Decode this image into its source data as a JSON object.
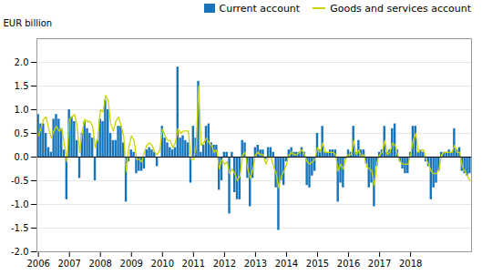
{
  "chart_data": {
    "type": "bar",
    "ylabel": "EUR billion",
    "categories": [
      "2006",
      null,
      null,
      null,
      null,
      null,
      null,
      null,
      null,
      null,
      null,
      null,
      "2007",
      null,
      null,
      null,
      null,
      null,
      null,
      null,
      null,
      null,
      null,
      null,
      "2008",
      null,
      null,
      null,
      null,
      null,
      null,
      null,
      null,
      null,
      null,
      null,
      "2009",
      null,
      null,
      null,
      null,
      null,
      null,
      null,
      null,
      null,
      null,
      null,
      "2010",
      null,
      null,
      null,
      null,
      null,
      null,
      null,
      null,
      null,
      null,
      null,
      "2011",
      null,
      null,
      null,
      null,
      null,
      null,
      null,
      null,
      null,
      null,
      null,
      "2012",
      null,
      null,
      null,
      null,
      null,
      null,
      null,
      null,
      null,
      null,
      null,
      "2013",
      null,
      null,
      null,
      null,
      null,
      null,
      null,
      null,
      null,
      null,
      null,
      "2014",
      null,
      null,
      null,
      null,
      null,
      null,
      null,
      null,
      null,
      null,
      null,
      "2015",
      null,
      null,
      null,
      null,
      null,
      null,
      null,
      null,
      null,
      null,
      null,
      "2016",
      null,
      null,
      null,
      null,
      null,
      null,
      null,
      null,
      null,
      null,
      null,
      "2017",
      null,
      null,
      null,
      null,
      null,
      null,
      null,
      null,
      null,
      null,
      null,
      "2018",
      null,
      null,
      null,
      null,
      null,
      null,
      null,
      null,
      null,
      null,
      null,
      null,
      null,
      null,
      null,
      null,
      null,
      null,
      null,
      null,
      null,
      null,
      null
    ],
    "series": [
      {
        "name": "Current account",
        "type": "bar",
        "color": "#1874b8",
        "values": [
          0.9,
          0.7,
          0.7,
          0.5,
          0.2,
          0.1,
          0.8,
          0.9,
          0.8,
          0.6,
          0.15,
          -0.9,
          1.0,
          0.85,
          0.75,
          0.35,
          -0.45,
          0.5,
          0.75,
          0.6,
          0.5,
          0.4,
          -0.5,
          0.35,
          0.8,
          0.75,
          1.2,
          1.0,
          0.5,
          0.35,
          0.35,
          0.65,
          0.65,
          0.3,
          -0.95,
          -0.1,
          0.15,
          0.1,
          -0.35,
          -0.3,
          -0.3,
          -0.25,
          0.15,
          0.2,
          0.15,
          0.1,
          -0.2,
          0.0,
          0.65,
          0.4,
          0.3,
          0.2,
          0.15,
          0.2,
          1.9,
          0.4,
          0.45,
          0.35,
          0.3,
          -0.55,
          0.65,
          0.4,
          1.6,
          0.1,
          0.25,
          0.65,
          0.7,
          0.3,
          0.25,
          0.25,
          -0.7,
          -0.5,
          0.1,
          0.1,
          -1.2,
          0.1,
          -0.75,
          -0.9,
          -0.9,
          0.35,
          0.3,
          -0.45,
          -1.05,
          -0.45,
          0.2,
          0.25,
          0.15,
          0.15,
          -0.05,
          0.2,
          0.2,
          0.1,
          -0.65,
          -1.55,
          -0.5,
          -0.6,
          -0.1,
          0.15,
          0.2,
          0.1,
          0.1,
          0.1,
          0.2,
          0.1,
          -0.6,
          -0.65,
          -0.4,
          -0.3,
          0.5,
          0.15,
          0.65,
          0.1,
          0.1,
          0.15,
          0.15,
          0.15,
          -0.95,
          -0.55,
          -0.65,
          -0.05,
          0.15,
          0.1,
          0.65,
          0.1,
          0.35,
          0.15,
          0.15,
          -0.15,
          -0.65,
          -0.55,
          -1.05,
          -0.2,
          0.1,
          0.15,
          0.65,
          0.1,
          0.15,
          0.6,
          0.7,
          0.15,
          -0.1,
          -0.25,
          -0.35,
          -0.35,
          0.1,
          0.65,
          0.65,
          0.1,
          0.15,
          0.1,
          -0.1,
          -0.2,
          -0.9,
          -0.65,
          -0.55,
          -0.3,
          0.1,
          0.1,
          0.1,
          0.15,
          0.1,
          0.6,
          0.15,
          0.2,
          -0.3,
          -0.35,
          -0.4,
          -0.35
        ]
      },
      {
        "name": "Goods and services account",
        "type": "line",
        "color": "#c8d400",
        "values": [
          0.45,
          0.6,
          0.8,
          0.85,
          0.6,
          0.4,
          0.55,
          0.65,
          0.55,
          0.6,
          0.3,
          -0.1,
          0.8,
          0.85,
          0.9,
          0.65,
          0.1,
          0.55,
          0.8,
          0.75,
          0.75,
          0.65,
          0.2,
          0.4,
          1.0,
          0.95,
          1.3,
          1.2,
          0.7,
          0.55,
          0.75,
          0.85,
          0.65,
          0.45,
          -0.3,
          0.2,
          0.45,
          0.35,
          -0.05,
          -0.05,
          -0.1,
          0.1,
          0.25,
          0.3,
          0.25,
          0.1,
          0.05,
          0.15,
          0.6,
          0.45,
          0.35,
          0.35,
          0.2,
          0.3,
          0.6,
          0.5,
          0.55,
          0.55,
          0.55,
          -0.05,
          -0.05,
          0.2,
          1.5,
          0.25,
          0.3,
          0.4,
          0.3,
          0.25,
          0.1,
          0.15,
          -0.25,
          -0.05,
          -0.15,
          -0.1,
          -0.35,
          -0.25,
          -0.35,
          -0.5,
          -0.4,
          0.05,
          0.1,
          -0.25,
          -0.45,
          -0.25,
          0.05,
          0.1,
          0.05,
          0.05,
          -0.15,
          0.0,
          0.0,
          -0.2,
          -0.35,
          -0.65,
          -0.4,
          -0.3,
          -0.15,
          0.05,
          0.1,
          0.05,
          0.05,
          0.1,
          0.15,
          0.05,
          -0.1,
          -0.15,
          -0.1,
          -0.05,
          0.2,
          0.1,
          0.3,
          0.1,
          0.1,
          0.1,
          0.1,
          0.05,
          -0.3,
          -0.15,
          -0.25,
          0.0,
          0.05,
          0.05,
          0.35,
          0.05,
          0.15,
          0.0,
          0.05,
          -0.2,
          -0.25,
          -0.3,
          -0.6,
          -0.1,
          0.05,
          0.1,
          0.35,
          0.05,
          0.1,
          0.3,
          0.25,
          0.05,
          -0.1,
          -0.15,
          -0.15,
          -0.15,
          0.05,
          0.35,
          0.5,
          0.1,
          0.15,
          0.15,
          -0.05,
          -0.15,
          -0.3,
          -0.35,
          -0.35,
          -0.25,
          0.05,
          0.1,
          0.1,
          0.1,
          0.1,
          0.25,
          0.1,
          0.1,
          -0.2,
          -0.3,
          -0.4,
          -0.5
        ]
      }
    ],
    "ylim": [
      -2.0,
      2.5
    ],
    "yticks": [
      {
        "value": -2.0,
        "label": "-2.0"
      },
      -1.5,
      {
        "value": -1.0,
        "label": "-1.0"
      },
      -0.5,
      {
        "value": 0.0,
        "label": "0.0"
      },
      0.5,
      {
        "value": 1.0,
        "label": "1.0"
      },
      1.5,
      {
        "value": 2.0,
        "label": "2.0"
      }
    ],
    "grid": true,
    "legend": "upper right"
  }
}
